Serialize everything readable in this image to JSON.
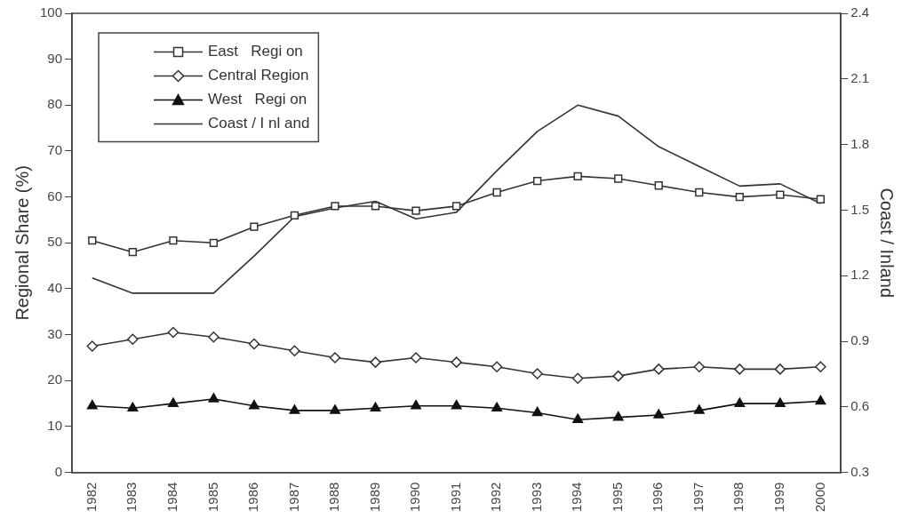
{
  "chart_data": {
    "type": "line",
    "ylabel": "Regional Share (%)",
    "y2label": "Coast / Inland",
    "categories": [
      "1982",
      "1983",
      "1984",
      "1985",
      "1986",
      "1987",
      "1988",
      "1989",
      "1990",
      "1991",
      "1992",
      "1993",
      "1994",
      "1995",
      "1996",
      "1997",
      "1998",
      "1999",
      "2000"
    ],
    "ylim": [
      0,
      100
    ],
    "yticks": [
      0,
      10,
      20,
      30,
      40,
      50,
      60,
      70,
      80,
      90,
      100
    ],
    "y2lim": [
      0.3,
      2.4
    ],
    "y2ticks": [
      0.3,
      0.6,
      0.9,
      1.2,
      1.5,
      1.8,
      2.1,
      2.4
    ],
    "grid": false,
    "legend": "top left",
    "series": [
      {
        "name": "East   Regi on",
        "color": "#333333",
        "marker": "square",
        "values": [
          50.5,
          48,
          50.5,
          50,
          53.5,
          56,
          58,
          58,
          57,
          58,
          61,
          63.5,
          64.5,
          64,
          62.5,
          61,
          60,
          60.5,
          59.5
        ]
      },
      {
        "name": "Central Region",
        "color": "#333333",
        "marker": "diamond",
        "values": [
          27.5,
          29,
          30.5,
          29.5,
          28,
          26.5,
          25,
          24,
          25,
          24,
          23,
          21.5,
          20.5,
          21,
          22.5,
          23,
          22.5,
          22.5,
          23
        ]
      },
      {
        "name": "West   Regi on",
        "color": "#111111",
        "marker": "triangle",
        "values": [
          14.5,
          14,
          15,
          16,
          14.5,
          13.5,
          13.5,
          14,
          14.5,
          14.5,
          14,
          13,
          11.5,
          12,
          12.5,
          13.5,
          15,
          15,
          15.5
        ]
      },
      {
        "name": "Coast / I nl and",
        "color": "#333333",
        "marker": "none",
        "axis": "y2",
        "values": [
          1.19,
          1.12,
          1.12,
          1.12,
          1.29,
          1.47,
          1.51,
          1.54,
          1.46,
          1.49,
          1.68,
          1.86,
          1.98,
          1.93,
          1.79,
          1.7,
          1.61,
          1.62,
          1.53
        ]
      }
    ]
  }
}
